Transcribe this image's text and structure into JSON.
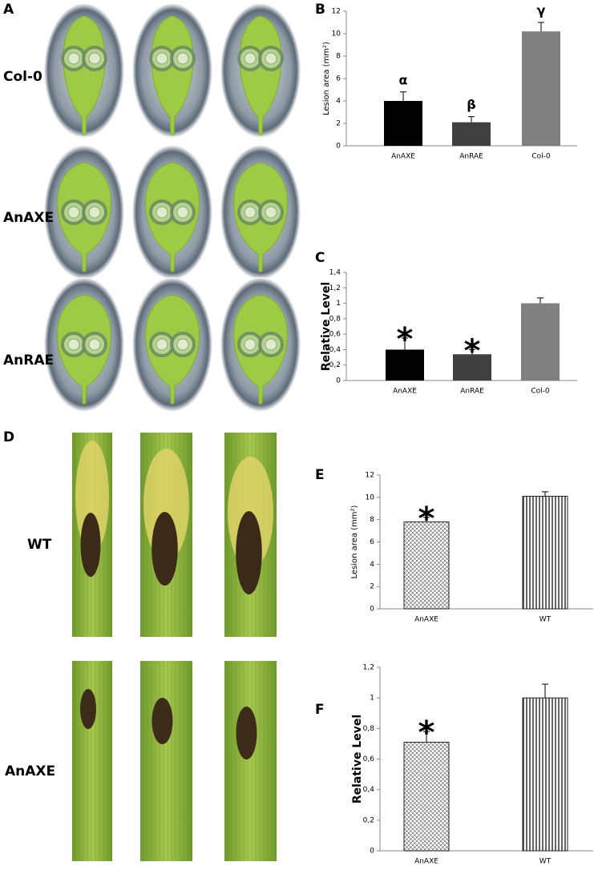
{
  "figure": {
    "panel_labels": [
      "A",
      "D"
    ],
    "row_labels_a": [
      "Col-0",
      "AnAXE",
      "AnRAE"
    ],
    "row_labels_d": [
      "WT",
      "AnAXE"
    ]
  },
  "chart_data": [
    {
      "type": "bar",
      "panel": "B",
      "y_label": "Lesion area (mm²)",
      "categories": [
        "AnAXE",
        "AnRAE",
        "Col-0"
      ],
      "values": [
        4.0,
        2.1,
        10.2
      ],
      "errors": [
        0.8,
        0.5,
        0.8
      ],
      "colors": [
        "#000000",
        "#404040",
        "#808080"
      ],
      "annotations": [
        "α",
        "β",
        "γ"
      ],
      "ylim": [
        0,
        12
      ],
      "yticks": [
        0,
        2,
        4,
        6,
        8,
        10,
        12
      ]
    },
    {
      "type": "bar",
      "panel": "C",
      "y_label": "Relative Level",
      "categories": [
        "AnAXE",
        "AnRAE",
        "Col-0"
      ],
      "values": [
        0.4,
        0.34,
        1.0
      ],
      "errors": [
        0.15,
        0.06,
        0.07
      ],
      "colors": [
        "#000000",
        "#404040",
        "#808080"
      ],
      "annotations": [
        "*",
        "*",
        null
      ],
      "ylim": [
        0,
        1.4
      ],
      "yticks": [
        0,
        {
          "value": 0.2,
          "label": "0,2"
        },
        {
          "value": 0.4,
          "label": "0,4"
        },
        {
          "value": 0.6,
          "label": "0,6"
        },
        {
          "value": 0.8,
          "label": "0,8"
        },
        1,
        {
          "value": 1.2,
          "label": "1,2"
        },
        {
          "value": 1.4,
          "label": "1,4"
        }
      ]
    },
    {
      "type": "bar",
      "panel": "E",
      "y_label": "Lesion area (mm²)",
      "categories": [
        "AnAXE",
        "WT"
      ],
      "values": [
        7.8,
        10.1
      ],
      "errors": [
        0.4,
        0.4
      ],
      "patterns": [
        "crosshatch",
        "vertical-lines"
      ],
      "annotations": [
        "*",
        null
      ],
      "ylim": [
        0,
        12
      ],
      "yticks": [
        0,
        2,
        4,
        6,
        8,
        10,
        12
      ]
    },
    {
      "type": "bar",
      "panel": "F",
      "y_label": "Relative Level",
      "categories": [
        "AnAXE",
        "WT"
      ],
      "values": [
        0.71,
        1.0
      ],
      "errors": [
        0.07,
        0.09
      ],
      "patterns": [
        "crosshatch",
        "vertical-lines"
      ],
      "annotations": [
        "*",
        null
      ],
      "ylim": [
        0,
        1.2
      ],
      "yticks": [
        0,
        {
          "value": 0.2,
          "label": "0,2"
        },
        {
          "value": 0.4,
          "label": "0,4"
        },
        {
          "value": 0.6,
          "label": "0,6"
        },
        {
          "value": 0.8,
          "label": "0,8"
        },
        1,
        {
          "value": 1.2,
          "label": "1,2"
        }
      ]
    }
  ]
}
